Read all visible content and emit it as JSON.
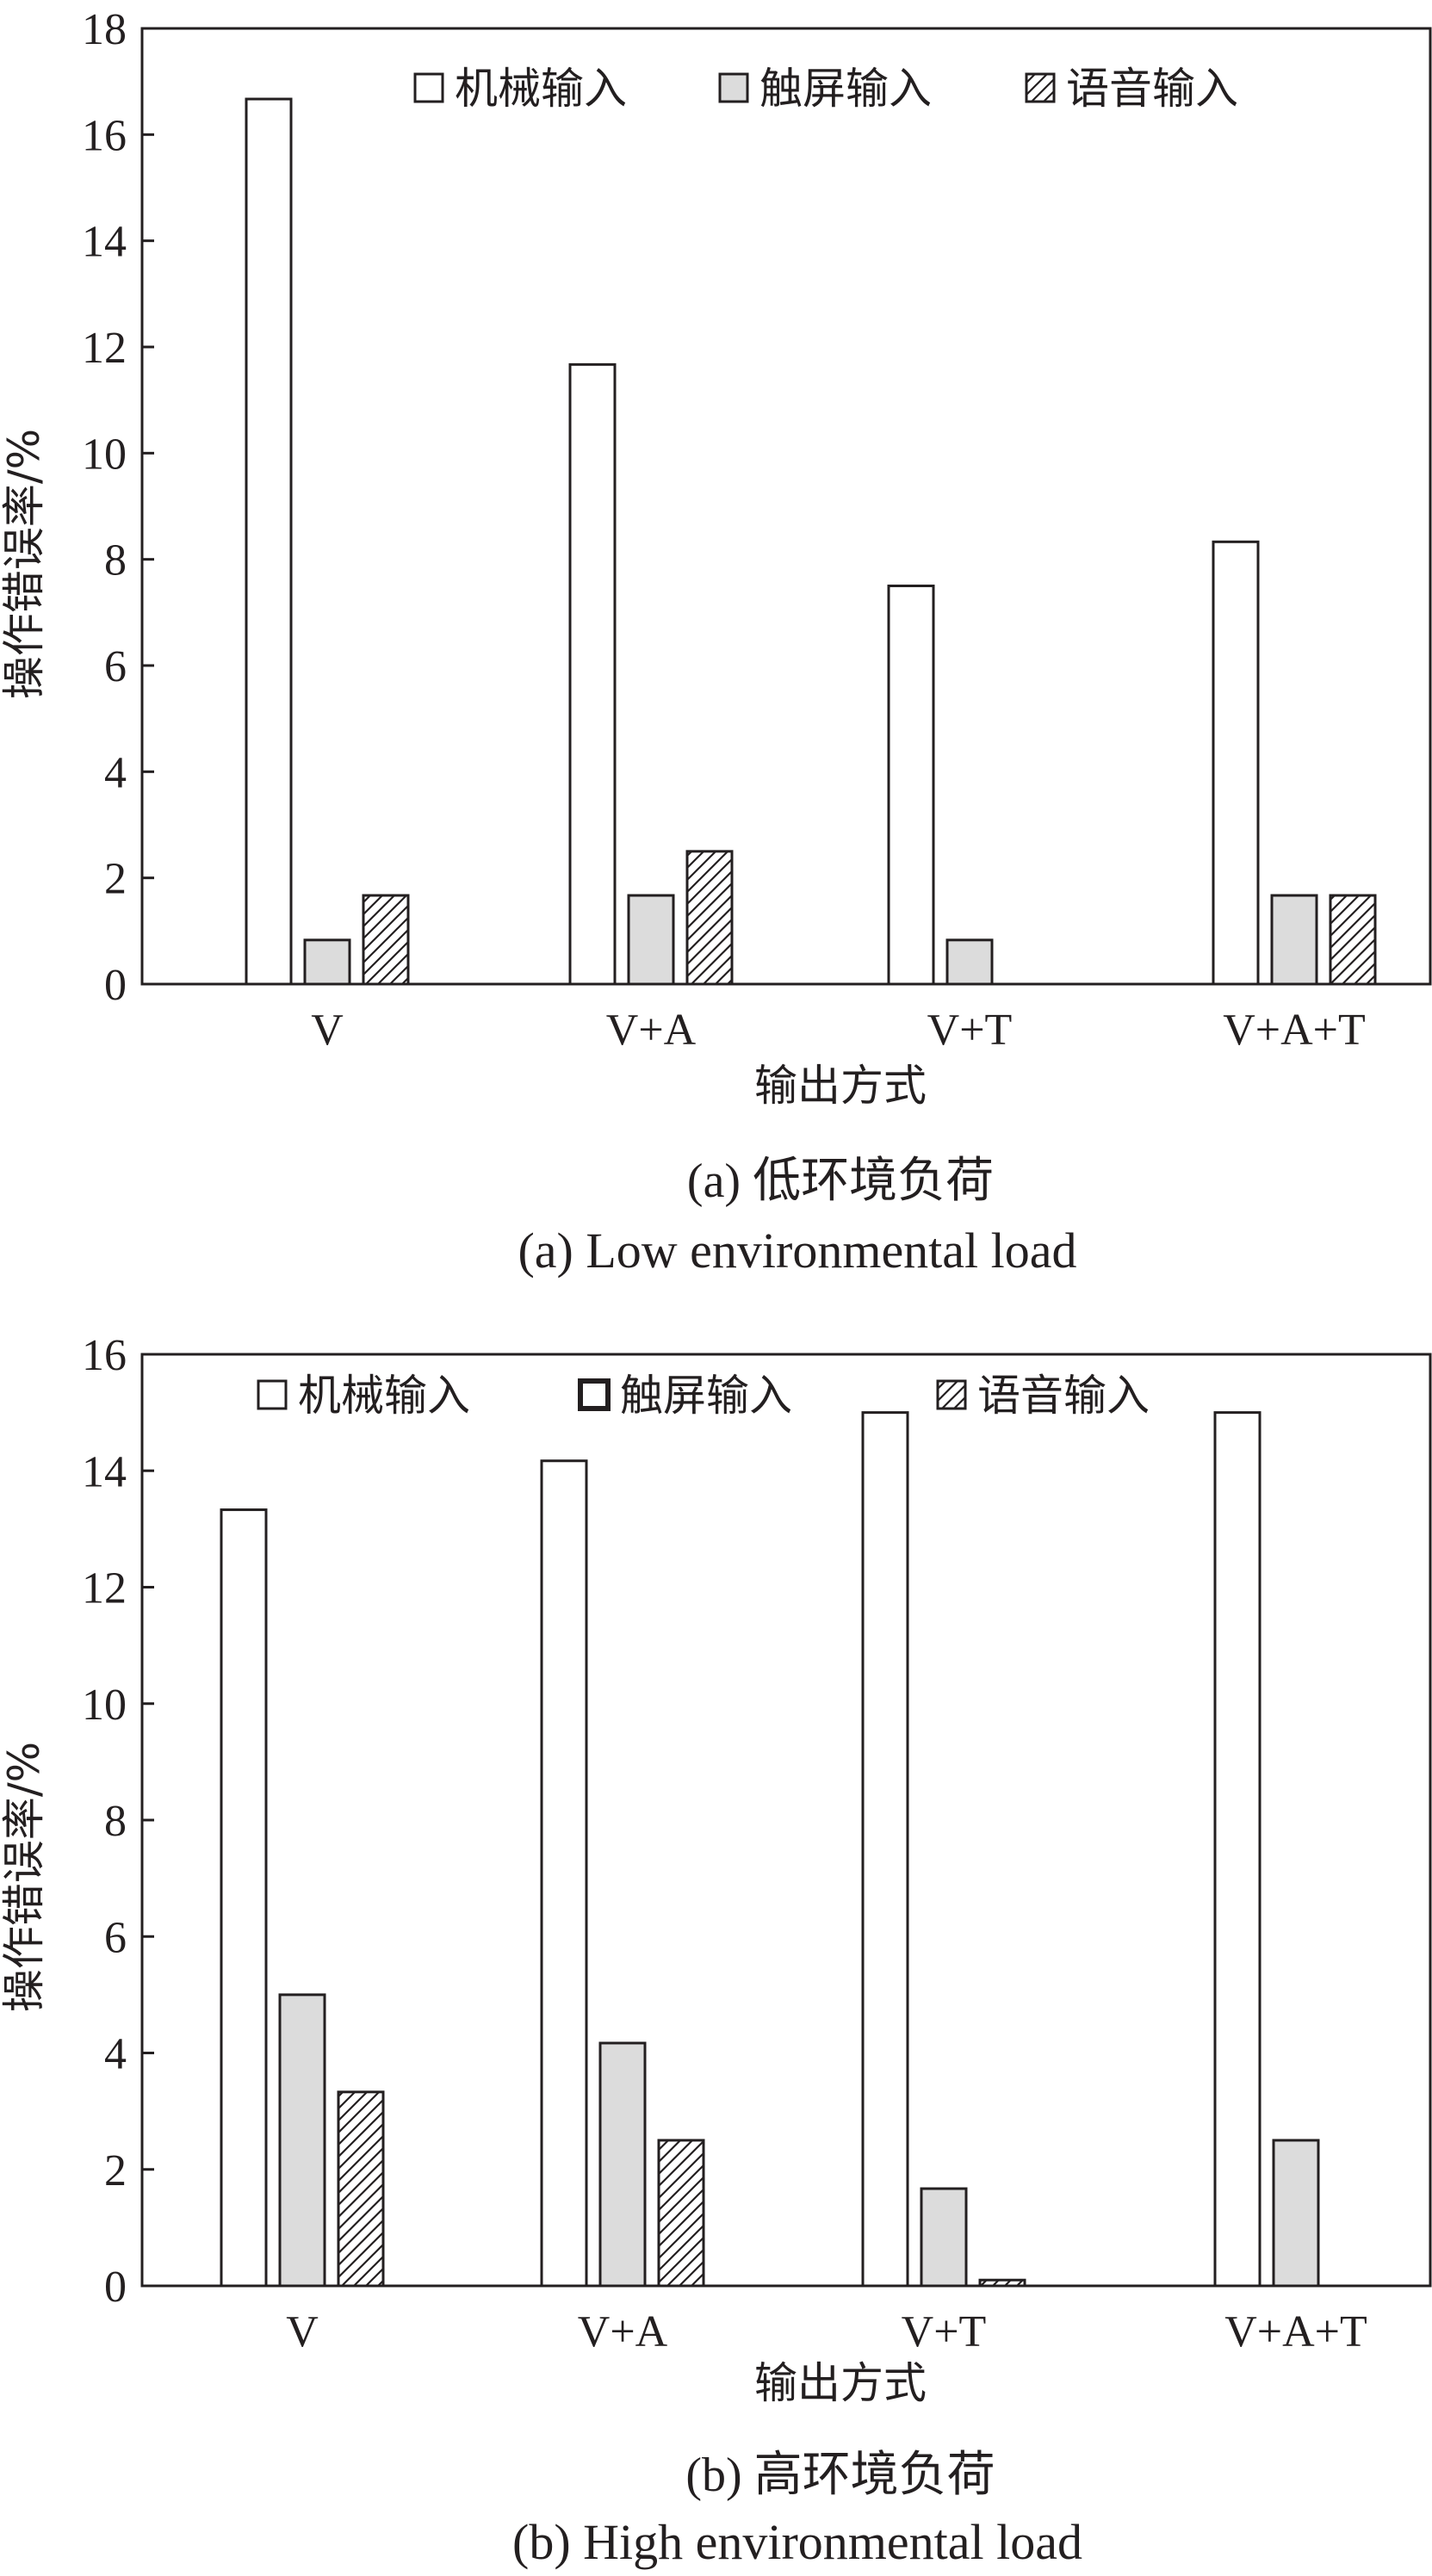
{
  "colors": {
    "stroke": "#231f20",
    "mechanical_fill": "#ffffff",
    "touch_fill": "#dcdcdc",
    "voice_fill": "#ffffff"
  },
  "chart_data": [
    {
      "type": "bar",
      "ylabel": "操作错误率/%",
      "xlabel": "输出方式",
      "caption_cn": "(a) 低环境负荷",
      "caption_en": "(a) Low environmental load",
      "ylim": [
        0,
        18
      ],
      "yticks": [
        0,
        2,
        4,
        6,
        8,
        10,
        12,
        14,
        16,
        18
      ],
      "legend_position": "top-right",
      "categories": [
        "V",
        "V+A",
        "V+T",
        "V+A+T"
      ],
      "series": [
        {
          "name": "机械输入",
          "pattern": "blank",
          "legend_swatch": "blank",
          "values": [
            16.67,
            11.67,
            7.5,
            8.33
          ]
        },
        {
          "name": "触屏输入",
          "pattern": "gray",
          "legend_swatch": "gray",
          "values": [
            0.83,
            1.67,
            0.83,
            1.67
          ]
        },
        {
          "name": "语音输入",
          "pattern": "hatch",
          "legend_swatch": "hatch",
          "values": [
            1.67,
            2.5,
            0,
            1.67
          ]
        }
      ]
    },
    {
      "type": "bar",
      "ylabel": "操作错误率/%",
      "xlabel": "输出方式",
      "caption_cn": "(b) 高环境负荷",
      "caption_en": "(b) High environmental load",
      "ylim": [
        0,
        16
      ],
      "yticks": [
        0,
        2,
        4,
        6,
        8,
        10,
        12,
        14,
        16
      ],
      "legend_position": "top",
      "categories": [
        "V",
        "V+A",
        "V+T",
        "V+A+T"
      ],
      "series": [
        {
          "name": "机械输入",
          "pattern": "blank",
          "legend_swatch": "blank",
          "values": [
            13.33,
            14.17,
            15.0,
            15.0
          ]
        },
        {
          "name": "触屏输入",
          "pattern": "gray",
          "legend_swatch": "bold-blank",
          "values": [
            5.0,
            4.17,
            1.67,
            2.5
          ]
        },
        {
          "name": "语音输入",
          "pattern": "hatch",
          "legend_swatch": "hatch",
          "values": [
            3.33,
            2.5,
            0.1,
            0
          ]
        }
      ]
    }
  ]
}
